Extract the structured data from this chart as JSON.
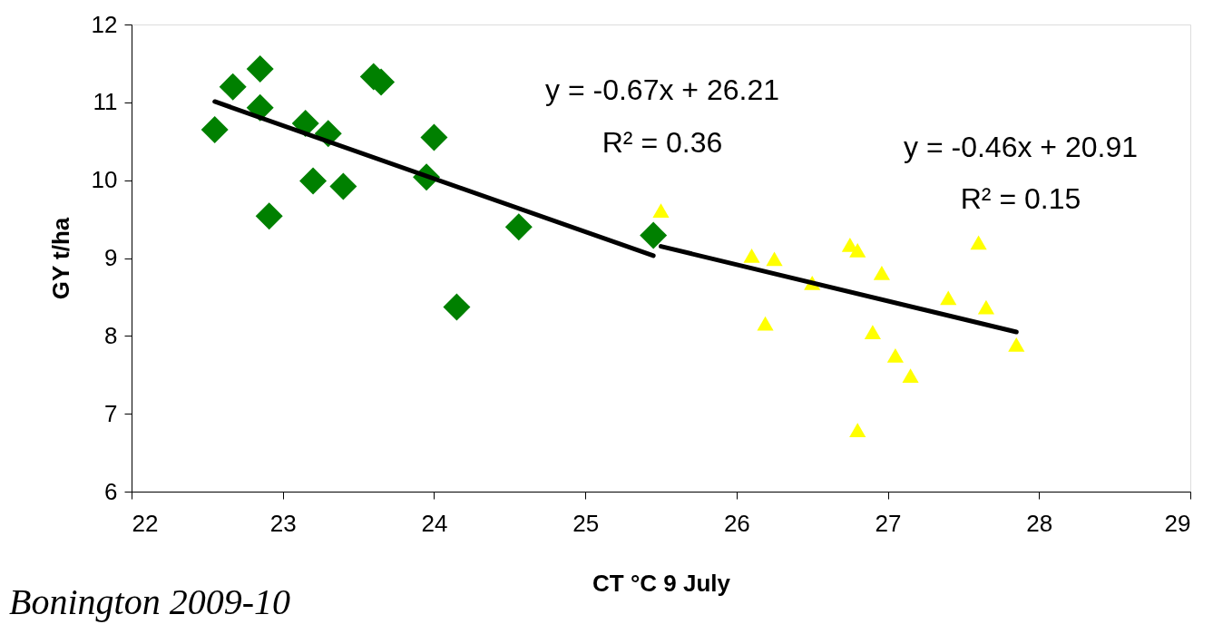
{
  "chart_data": {
    "type": "scatter",
    "xlabel": "CT °C 9 July",
    "ylabel": "GY t/ha",
    "xlim": [
      22,
      29
    ],
    "xticks": [
      22,
      23,
      24,
      25,
      26,
      27,
      28,
      29
    ],
    "ylim": [
      6,
      12
    ],
    "yticks": [
      6,
      7,
      8,
      9,
      10,
      11,
      12
    ],
    "grid": false,
    "series": [
      {
        "marker": "diamond",
        "color": "#008000",
        "x": [
          22.55,
          22.67,
          22.85,
          22.85,
          22.91,
          23.15,
          23.3,
          23.2,
          23.4,
          23.6,
          23.65,
          23.95,
          24.0,
          24.56,
          24.15,
          25.45
        ],
        "values": [
          10.65,
          11.2,
          11.43,
          10.93,
          9.54,
          10.73,
          10.6,
          9.99,
          9.92,
          11.33,
          11.26,
          10.04,
          10.55,
          9.4,
          8.37,
          9.29
        ]
      },
      {
        "marker": "triangle",
        "color": "#ffff00",
        "x": [
          25.5,
          26.1,
          26.25,
          26.5,
          26.75,
          26.8,
          26.96,
          26.19,
          26.9,
          27.05,
          27.15,
          26.8,
          27.4,
          27.6,
          27.65,
          27.85
        ],
        "values": [
          9.61,
          9.03,
          8.99,
          8.68,
          9.17,
          9.1,
          8.81,
          8.16,
          8.05,
          7.75,
          7.49,
          6.79,
          8.49,
          9.2,
          8.37,
          7.89
        ]
      },
      {
        "type": "line",
        "color": "#000000",
        "x": [
          22.55,
          25.45
        ],
        "values": [
          11.01,
          9.03
        ]
      },
      {
        "type": "line",
        "color": "#000000",
        "x": [
          25.5,
          27.85
        ],
        "values": [
          9.15,
          8.05
        ]
      }
    ],
    "annotations": [
      "y = -0.67x + 26.21",
      "R² = 0.36",
      "y = -0.46x + 20.91",
      "R² = 0.15",
      "Bonington 2009-10"
    ]
  }
}
